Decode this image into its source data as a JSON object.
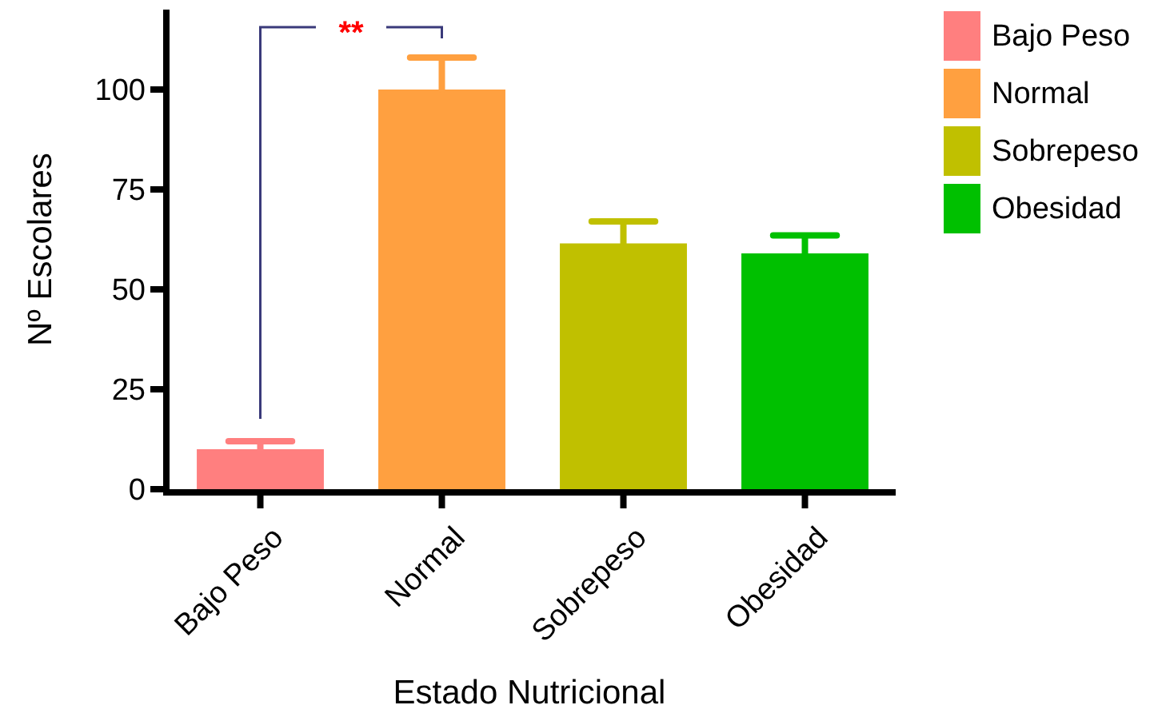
{
  "chart_data": {
    "type": "bar",
    "xlabel": "Estado Nutricional",
    "ylabel": "Nº Escolares",
    "categories": [
      "Bajo Peso",
      "Normal",
      "Sobrepeso",
      "Obesidad"
    ],
    "series": [
      {
        "name": "Bajo Peso",
        "color": "#ff7f7f",
        "values": [
          10,
          null,
          null,
          null
        ],
        "errors": [
          [
            10,
            12
          ],
          null,
          null,
          null
        ]
      },
      {
        "name": "Normal",
        "color": "#ffa040",
        "values": [
          null,
          100,
          null,
          null
        ],
        "errors": [
          null,
          [
            100,
            108
          ],
          null,
          null
        ]
      },
      {
        "name": "Sobrepeso",
        "color": "#c0c000",
        "values": [
          null,
          null,
          61.5,
          null
        ],
        "errors": [
          null,
          null,
          [
            61.5,
            67
          ],
          null
        ]
      },
      {
        "name": "Obesidad",
        "color": "#00c000",
        "values": [
          null,
          null,
          null,
          59
        ],
        "errors": [
          null,
          null,
          null,
          [
            59,
            63.5
          ]
        ]
      }
    ],
    "ylim": [
      0,
      120
    ],
    "yticks": [
      0,
      25,
      50,
      75,
      100
    ],
    "legend": "right",
    "annotations": [
      "**"
    ]
  }
}
